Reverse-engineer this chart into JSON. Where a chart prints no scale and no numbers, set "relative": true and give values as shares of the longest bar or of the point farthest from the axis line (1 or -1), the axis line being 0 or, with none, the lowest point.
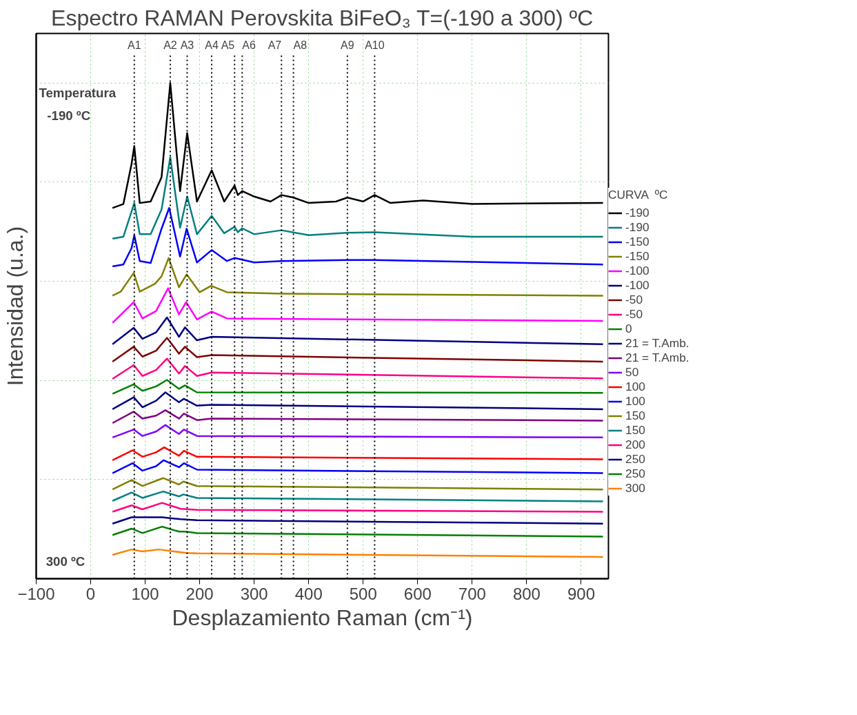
{
  "chart_data": {
    "type": "line",
    "title": "Espectro RAMAN Perovskita BiFeO₃ T=(-190 a 300) ºC",
    "xlabel": "Desplazamiento Raman (cm⁻¹)",
    "ylabel": "Intensidad (u.a.)",
    "legend_title": "CURVA  ºC",
    "relative": true,
    "legend": "right",
    "grid": true,
    "line_style": "solid",
    "xlim": [
      -100,
      950
    ],
    "xticks": [
      -100,
      0,
      100,
      200,
      300,
      400,
      500,
      600,
      700,
      800,
      900
    ],
    "annotations": [
      "Temperatura",
      "-190 ºC",
      "300 ºC"
    ],
    "ref_lines": [
      {
        "axis": "x",
        "value": 80,
        "label": "A1",
        "color": "#000000",
        "line_style": "dotted"
      },
      {
        "axis": "x",
        "value": 146,
        "label": "A2",
        "color": "#000000",
        "line_style": "dotted"
      },
      {
        "axis": "x",
        "value": 177,
        "label": "A3",
        "color": "#000000",
        "line_style": "dotted"
      },
      {
        "axis": "x",
        "value": 222,
        "label": "A4",
        "color": "#000000",
        "line_style": "dotted"
      },
      {
        "axis": "x",
        "value": 264,
        "label": "A5",
        "color": "#000000",
        "line_style": "dotted"
      },
      {
        "axis": "x",
        "value": 278,
        "label": "A6",
        "color": "#000000",
        "line_style": "dotted"
      },
      {
        "axis": "x",
        "value": 350,
        "label": "A7",
        "color": "#000000",
        "line_style": "dotted"
      },
      {
        "axis": "x",
        "value": 372,
        "label": "A8",
        "color": "#000000",
        "line_style": "dotted"
      },
      {
        "axis": "x",
        "value": 471,
        "label": "A9",
        "color": "#000000",
        "line_style": "dotted"
      },
      {
        "axis": "x",
        "value": 521,
        "label": "A10",
        "color": "#000000",
        "line_style": "dotted"
      }
    ],
    "series": [
      {
        "name": "-190",
        "color": "#000000",
        "x": [
          40,
          60,
          75,
          80,
          90,
          110,
          130,
          146,
          164,
          177,
          195,
          222,
          245,
          264,
          270,
          278,
          300,
          330,
          350,
          372,
          400,
          450,
          471,
          500,
          521,
          550,
          610,
          700,
          800,
          940
        ],
        "values": [
          0.748,
          0.756,
          0.837,
          0.873,
          0.758,
          0.761,
          0.81,
          1.0,
          0.782,
          0.899,
          0.761,
          0.824,
          0.761,
          0.793,
          0.774,
          0.782,
          0.771,
          0.761,
          0.774,
          0.769,
          0.758,
          0.761,
          0.769,
          0.761,
          0.774,
          0.758,
          0.763,
          0.756,
          0.757,
          0.758
        ]
      },
      {
        "name": "-190",
        "color": "#008080",
        "x": [
          40,
          60,
          75,
          80,
          90,
          110,
          130,
          146,
          164,
          177,
          195,
          222,
          245,
          264,
          270,
          278,
          300,
          350,
          400,
          471,
          521,
          700,
          940
        ],
        "values": [
          0.686,
          0.69,
          0.741,
          0.758,
          0.695,
          0.695,
          0.745,
          0.85,
          0.708,
          0.771,
          0.695,
          0.732,
          0.697,
          0.71,
          0.699,
          0.707,
          0.695,
          0.703,
          0.693,
          0.698,
          0.699,
          0.69,
          0.69
        ]
      },
      {
        "name": "-150",
        "color": "#0000ff",
        "x": [
          40,
          60,
          75,
          80,
          90,
          110,
          130,
          144,
          164,
          176,
          195,
          222,
          250,
          264,
          300,
          350,
          471,
          521,
          940
        ],
        "values": [
          0.63,
          0.634,
          0.667,
          0.693,
          0.641,
          0.637,
          0.706,
          0.748,
          0.65,
          0.706,
          0.638,
          0.663,
          0.641,
          0.647,
          0.638,
          0.641,
          0.643,
          0.643,
          0.634
        ]
      },
      {
        "name": "-150",
        "color": "#808000",
        "x": [
          40,
          55,
          79,
          90,
          118,
          130,
          143,
          162,
          176,
          200,
          221,
          250,
          350,
          940
        ],
        "values": [
          0.571,
          0.579,
          0.617,
          0.579,
          0.595,
          0.61,
          0.647,
          0.588,
          0.614,
          0.578,
          0.591,
          0.578,
          0.575,
          0.571
        ]
      },
      {
        "name": "-100",
        "color": "#ff00ff",
        "x": [
          40,
          79,
          95,
          120,
          142,
          162,
          175,
          195,
          222,
          250,
          940
        ],
        "values": [
          0.516,
          0.558,
          0.525,
          0.54,
          0.586,
          0.533,
          0.558,
          0.523,
          0.539,
          0.525,
          0.52
        ]
      },
      {
        "name": "-100",
        "color": "#000080",
        "x": [
          40,
          79,
          95,
          120,
          140,
          162,
          173,
          195,
          222,
          940
        ],
        "values": [
          0.473,
          0.506,
          0.484,
          0.497,
          0.527,
          0.488,
          0.507,
          0.481,
          0.488,
          0.473
        ]
      },
      {
        "name": "-50",
        "color": "#800000",
        "x": [
          40,
          79,
          95,
          120,
          140,
          162,
          173,
          195,
          222,
          940
        ],
        "values": [
          0.438,
          0.468,
          0.448,
          0.46,
          0.486,
          0.454,
          0.468,
          0.447,
          0.451,
          0.438
        ]
      },
      {
        "name": "-50",
        "color": "#ff0080",
        "x": [
          40,
          79,
          95,
          120,
          140,
          162,
          173,
          195,
          222,
          940
        ],
        "values": [
          0.403,
          0.431,
          0.409,
          0.421,
          0.444,
          0.414,
          0.429,
          0.409,
          0.416,
          0.404
        ]
      },
      {
        "name": "0",
        "color": "#008000",
        "x": [
          40,
          79,
          95,
          120,
          140,
          162,
          173,
          195,
          940
        ],
        "values": [
          0.373,
          0.392,
          0.379,
          0.388,
          0.401,
          0.383,
          0.39,
          0.376,
          0.375
        ]
      },
      {
        "name": "21 = T.Amb.",
        "color": "#000080",
        "x": [
          40,
          79,
          95,
          120,
          137,
          162,
          171,
          195,
          222,
          940
        ],
        "values": [
          0.342,
          0.366,
          0.346,
          0.359,
          0.376,
          0.356,
          0.363,
          0.349,
          0.351,
          0.342
        ]
      },
      {
        "name": "21 = T.Amb.",
        "color": "#800080",
        "x": [
          40,
          79,
          95,
          120,
          137,
          162,
          171,
          195,
          222,
          940
        ],
        "values": [
          0.314,
          0.337,
          0.323,
          0.329,
          0.34,
          0.323,
          0.333,
          0.32,
          0.323,
          0.319
        ]
      },
      {
        "name": "50",
        "color": "#8000ff",
        "x": [
          40,
          79,
          95,
          120,
          137,
          162,
          171,
          195,
          940
        ],
        "values": [
          0.285,
          0.301,
          0.288,
          0.297,
          0.31,
          0.292,
          0.301,
          0.288,
          0.285
        ]
      },
      {
        "name": "100",
        "color": "#ff0000",
        "x": [
          40,
          77,
          95,
          120,
          135,
          162,
          171,
          195,
          940
        ],
        "values": [
          0.239,
          0.259,
          0.246,
          0.255,
          0.265,
          0.248,
          0.258,
          0.246,
          0.241
        ]
      },
      {
        "name": "100",
        "color": "#0000ff",
        "x": [
          40,
          77,
          95,
          120,
          134,
          162,
          171,
          195,
          940
        ],
        "values": [
          0.213,
          0.233,
          0.218,
          0.227,
          0.239,
          0.225,
          0.233,
          0.22,
          0.213
        ]
      },
      {
        "name": "150",
        "color": "#808000",
        "x": [
          40,
          75,
          95,
          133,
          162,
          170,
          195,
          940
        ],
        "values": [
          0.18,
          0.199,
          0.187,
          0.203,
          0.19,
          0.196,
          0.187,
          0.18
        ]
      },
      {
        "name": "150",
        "color": "#008080",
        "x": [
          40,
          75,
          95,
          133,
          162,
          170,
          195,
          940
        ],
        "values": [
          0.157,
          0.174,
          0.163,
          0.176,
          0.166,
          0.17,
          0.163,
          0.156
        ]
      },
      {
        "name": "200",
        "color": "#ff0080",
        "x": [
          40,
          75,
          95,
          131,
          165,
          195,
          940
        ],
        "values": [
          0.135,
          0.148,
          0.14,
          0.153,
          0.141,
          0.139,
          0.135
        ]
      },
      {
        "name": "250",
        "color": "#000080",
        "x": [
          40,
          75,
          131,
          165,
          195,
          940
        ],
        "values": [
          0.111,
          0.124,
          0.124,
          0.12,
          0.118,
          0.111
        ]
      },
      {
        "name": "250",
        "color": "#008000",
        "x": [
          40,
          75,
          95,
          131,
          162,
          175,
          195,
          940
        ],
        "values": [
          0.088,
          0.101,
          0.092,
          0.105,
          0.095,
          0.095,
          0.092,
          0.085
        ]
      },
      {
        "name": "300",
        "color": "#ff8000",
        "x": [
          40,
          75,
          95,
          125,
          175,
          195,
          940
        ],
        "values": [
          0.048,
          0.059,
          0.055,
          0.059,
          0.052,
          0.051,
          0.044
        ]
      }
    ]
  }
}
